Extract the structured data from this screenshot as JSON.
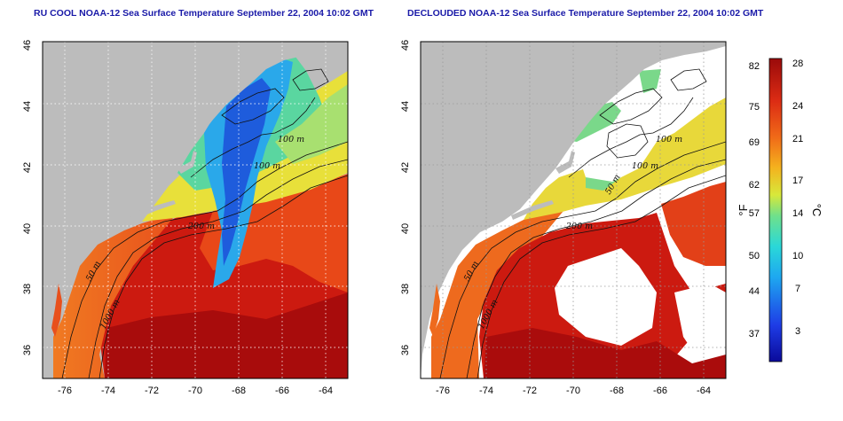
{
  "titles": {
    "left": "RU COOL NOAA-12 Sea Surface Temperature September 22, 2004 10:02 GMT",
    "right": "DECLOUDED NOAA-12 Sea Surface Temperature September 22, 2004 10:02 GMT"
  },
  "axes": {
    "lat_ticks": [
      "46",
      "44",
      "42",
      "40",
      "38",
      "36"
    ],
    "lon_ticks": [
      "-76",
      "-74",
      "-72",
      "-70",
      "-68",
      "-66",
      "-64"
    ]
  },
  "contour_labels": {
    "left": [
      "100 m",
      "100 m",
      "200 m",
      "50 m",
      "1000 m"
    ],
    "right": [
      "100 m",
      "100 m",
      "50 m",
      "200 m",
      "50 m",
      "1000 m"
    ]
  },
  "colorbar": {
    "fahrenheit_ticks": [
      "82",
      "75",
      "69",
      "62",
      "57",
      "50",
      "44",
      "37"
    ],
    "celsius_ticks": [
      "28",
      "24",
      "21",
      "17",
      "14",
      "10",
      "7",
      "3"
    ],
    "f_unit": "°F",
    "c_unit": "°C"
  },
  "colors": {
    "title": "#1a1aa8",
    "land": "#bcbcbc",
    "cloud_mask": "#ffffff",
    "warm": "#cc1a10",
    "cold": "#1e5cdc"
  }
}
